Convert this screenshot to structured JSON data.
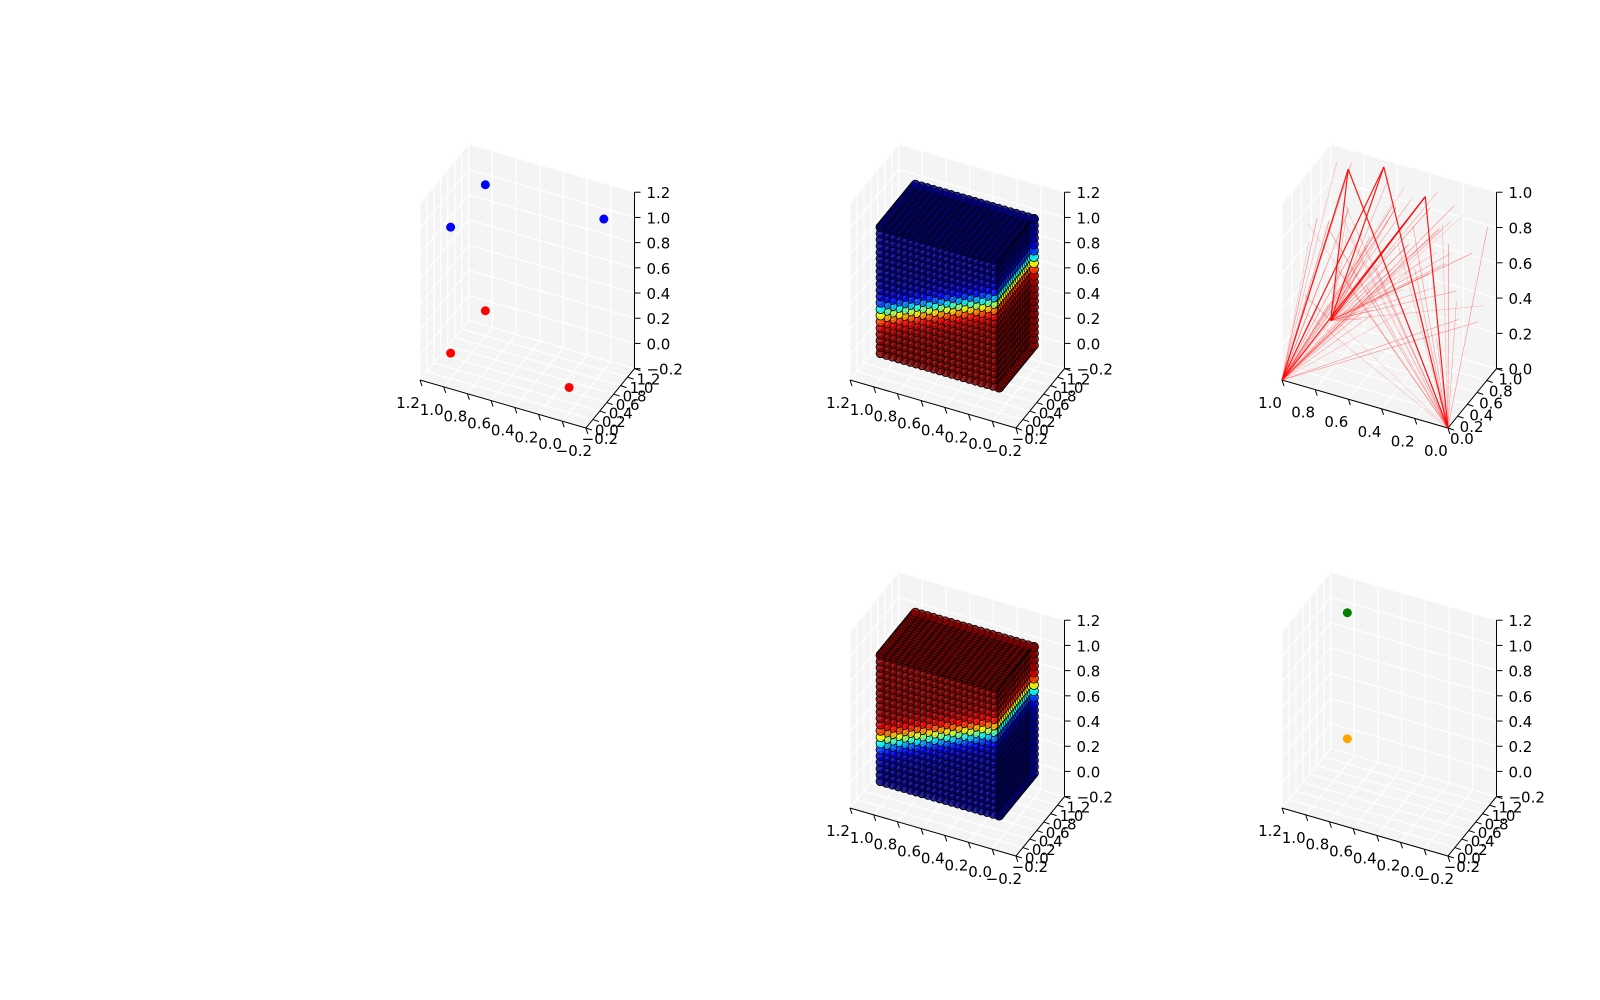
{
  "colors": {
    "pane_fill": "#ebebeb",
    "pane_stroke": "#d9d9d9",
    "grid": "#ffffff",
    "tick": "#000000",
    "red": "#ff0000",
    "blue": "#0000ff",
    "green": "#008000",
    "orange": "#ffa500"
  },
  "chart_data": [
    {
      "id": "plot-1",
      "type": "scatter",
      "title": "",
      "xlabel": "",
      "ylabel": "",
      "zlabel": "",
      "xlim": [
        -0.2,
        1.2
      ],
      "ylim": [
        -0.2,
        1.2
      ],
      "zlim": [
        -0.2,
        1.2
      ],
      "xticks": [
        "−0.2",
        "0.0",
        "0.2",
        "0.4",
        "0.6",
        "0.8",
        "1.0",
        "1.2"
      ],
      "yticks": [
        "−0.2",
        "0.0",
        "0.2",
        "0.4",
        "0.6",
        "0.8",
        "1.0",
        "1.2"
      ],
      "zticks": [
        "−0.2",
        "0.0",
        "0.2",
        "0.4",
        "0.6",
        "0.8",
        "1.0",
        "1.2"
      ],
      "grid": true,
      "points": [
        {
          "x": 0,
          "y": 0,
          "z": 0,
          "color": "red"
        },
        {
          "x": 1,
          "y": 0,
          "z": 0,
          "color": "red"
        },
        {
          "x": 0,
          "y": 1,
          "z": 0,
          "color": "red"
        },
        {
          "x": 0,
          "y": 0,
          "z": 1,
          "color": "blue"
        },
        {
          "x": 1,
          "y": 1,
          "z": 1,
          "color": "blue"
        },
        {
          "x": 0,
          "y": 1,
          "z": 1,
          "color": "blue"
        }
      ]
    },
    {
      "id": "plot-2",
      "type": "scatter",
      "title": "",
      "xlim": [
        -0.2,
        1.2
      ],
      "ylim": [
        -0.2,
        1.2
      ],
      "zlim": [
        -0.2,
        1.2
      ],
      "xticks": [
        "−0.2",
        "0.0",
        "0.2",
        "0.4",
        "0.6",
        "0.8",
        "1.0",
        "1.2"
      ],
      "yticks": [
        "−0.2",
        "0.0",
        "0.2",
        "0.4",
        "0.6",
        "0.8",
        "1.0",
        "1.2"
      ],
      "zticks": [
        "−0.2",
        "0.0",
        "0.2",
        "0.4",
        "0.6",
        "0.8",
        "1.0",
        "1.2"
      ],
      "grid": true,
      "grid_points": {
        "range": [
          0,
          1
        ],
        "steps": 20
      },
      "colormap": "jet",
      "color_rule": "high (red) where z is below the boundary plane, low (blue) above it",
      "boundary_plane": {
        "a": 0.25,
        "b": 0.25,
        "c": 0.5,
        "sharpness": 20
      }
    },
    {
      "id": "plot-3",
      "type": "line",
      "title": "",
      "xlim": [
        0,
        1
      ],
      "ylim": [
        0,
        1
      ],
      "zlim": [
        0,
        1
      ],
      "xticks": [
        "0.0",
        "0.2",
        "0.4",
        "0.6",
        "0.8",
        "1.0"
      ],
      "yticks": [
        "0.0",
        "0.2",
        "0.4",
        "0.6",
        "0.8",
        "1.0"
      ],
      "zticks": [
        "0.0",
        "0.2",
        "0.4",
        "0.6",
        "0.8",
        "1.0"
      ],
      "grid": true,
      "line_color": "red",
      "hubs": [
        {
          "x": 0,
          "y": 0,
          "z": 0
        },
        {
          "x": 1,
          "y": 0,
          "z": 0
        },
        {
          "x": 0,
          "y": 1,
          "z": 0
        }
      ],
      "strong_targets": [
        {
          "x": 0.35,
          "y": 0.9,
          "z": 1.0
        },
        {
          "x": 0.15,
          "y": 0.85,
          "z": 0.95
        },
        {
          "x": 0.6,
          "y": 0.9,
          "z": 0.9
        }
      ],
      "faint_line_count": 80
    },
    {
      "id": "plot-4",
      "type": "scatter",
      "title": "",
      "xlim": [
        -0.2,
        1.2
      ],
      "ylim": [
        -0.2,
        1.2
      ],
      "zlim": [
        -0.2,
        1.2
      ],
      "xticks": [
        "−0.2",
        "0.0",
        "0.2",
        "0.4",
        "0.6",
        "0.8",
        "1.0",
        "1.2"
      ],
      "yticks": [
        "−0.2",
        "0.0",
        "0.2",
        "0.4",
        "0.6",
        "0.8",
        "1.0",
        "1.2"
      ],
      "zticks": [
        "−0.2",
        "0.0",
        "0.2",
        "0.4",
        "0.6",
        "0.8",
        "1.0",
        "1.2"
      ],
      "grid": true,
      "grid_points": {
        "range": [
          0,
          1
        ],
        "steps": 20
      },
      "colormap": "jet",
      "color_rule": "high (red) where z is above the boundary plane, low (blue) below it",
      "boundary_plane": {
        "a": 0.25,
        "b": 0.25,
        "c": 0.5,
        "sharpness": 20
      }
    },
    {
      "id": "plot-5",
      "type": "scatter",
      "title": "",
      "xlim": [
        -0.2,
        1.2
      ],
      "ylim": [
        -0.2,
        1.2
      ],
      "zlim": [
        -0.2,
        1.2
      ],
      "xticks": [
        "−0.2",
        "0.0",
        "0.2",
        "0.4",
        "0.6",
        "0.8",
        "1.0",
        "1.2"
      ],
      "yticks": [
        "−0.2",
        "0.0",
        "0.2",
        "0.4",
        "0.6",
        "0.8",
        "1.0",
        "1.2"
      ],
      "zticks": [
        "−0.2",
        "0.0",
        "0.2",
        "0.4",
        "0.6",
        "0.8",
        "1.0",
        "1.2"
      ],
      "grid": true,
      "points": [
        {
          "x": 0,
          "y": 1,
          "z": 1,
          "color": "green"
        },
        {
          "x": 0,
          "y": 1,
          "z": 0,
          "color": "orange"
        }
      ]
    }
  ]
}
